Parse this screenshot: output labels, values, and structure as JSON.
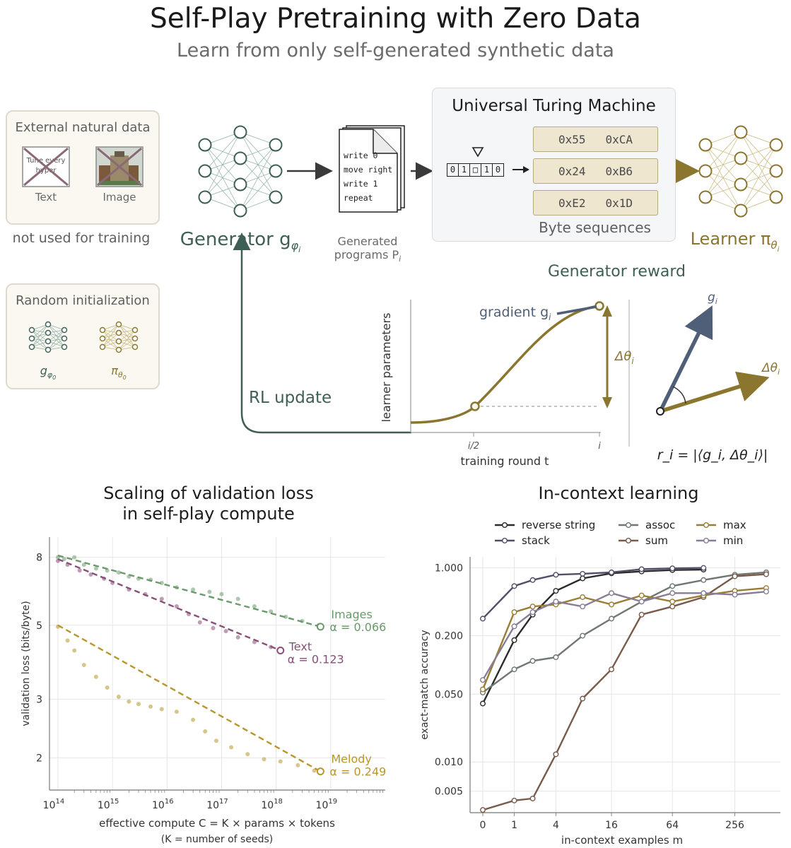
{
  "header": {
    "title": "Self-Play Pretraining with Zero Data",
    "subtitle": "Learn from only self-generated synthetic data"
  },
  "external_panel": {
    "title": "External natural data",
    "text_label": "Text",
    "image_label": "Image",
    "doc_line1": "Tune every",
    "doc_line2": "hyper",
    "caption": "not used for training"
  },
  "random_panel": {
    "title": "Random initialization",
    "g_label": "g",
    "g_sub": "φ",
    "g_subsub": "0",
    "pi_label": "π",
    "pi_sub": "θ",
    "pi_subsub": "0"
  },
  "generator": {
    "label": "Generator g",
    "sub": "φ",
    "subsub": "i"
  },
  "programs": {
    "lines": [
      "write 0",
      "move right",
      "write 1",
      "repeat"
    ],
    "label_line1": "Generated",
    "label_line2": "programs P",
    "label_sub": "i"
  },
  "utm": {
    "title": "Universal Turing Machine",
    "tape": [
      "0",
      "1",
      "□",
      "1",
      "0"
    ],
    "bytes": [
      [
        "0x55",
        "0xCA"
      ],
      [
        "0x24",
        "0xB6"
      ],
      [
        "0xE2",
        "0x1D"
      ]
    ],
    "caption": "Byte sequences"
  },
  "learner": {
    "label": "Learner π",
    "sub": "θ",
    "subsub": "i"
  },
  "reward": {
    "title": "Generator reward",
    "rl_update": "RL update",
    "gradient": "gradient g",
    "gradient_sub": "i",
    "y_axis": "learner parameters",
    "x_axis": "training round  t",
    "tick_half": "i/2",
    "tick_i": "i",
    "delta": "Δθ",
    "delta_sub": "i",
    "g_vec": "g",
    "g_vec_sub": "i",
    "d_vec": "Δθ",
    "d_vec_sub": "i",
    "formula": "r_i = |⟨g_i, Δθ_i⟩|"
  },
  "colors": {
    "generator": "#3d5f55",
    "learner": "#8b7630",
    "arrow": "#3a3a3a",
    "gradient": "#4f5f78",
    "images": "#6a9a6a",
    "text": "#8a4f78",
    "melody": "#b8962e"
  },
  "scaling_chart": {
    "title_line1": "Scaling of validation loss",
    "title_line2": "in self-play compute",
    "ylabel": "validation loss (bits/byte)",
    "xlabel": "effective compute  C = K ×  params × tokens",
    "xlabel2": "(K = number of seeds)"
  },
  "icl_chart": {
    "title": "In-context learning",
    "ylabel": "exact-match accuracy",
    "xlabel": "in-context examples  m"
  },
  "chart_data": [
    {
      "type": "scatter",
      "title": "Scaling of validation loss in self-play compute",
      "xlabel": "effective compute C = K × params × tokens (K = number of seeds)",
      "ylabel": "validation loss (bits/byte)",
      "x_scale": "log",
      "y_scale": "log",
      "xlim": [
        70000000000000.0,
        1e+20
      ],
      "ylim": [
        1.6,
        9.2
      ],
      "x_ticks": [
        100000000000000.0,
        1000000000000000.0,
        1e+16,
        1e+17,
        1e+18,
        1e+19
      ],
      "x_tick_labels": [
        "10^14",
        "10^15",
        "10^16",
        "10^17",
        "10^18",
        "10^19"
      ],
      "y_ticks": [
        2,
        3,
        5,
        8
      ],
      "y_tick_labels": [
        "2",
        "3",
        "5",
        "8"
      ],
      "grid": true,
      "series": [
        {
          "name": "Images",
          "alpha_label": "α = 0.066",
          "color": "#6a9a6a",
          "fit_start": [
            100000000000000.0,
            8.1
          ],
          "fit_end": [
            6.5e+18,
            4.95
          ],
          "end_point": [
            6.5e+18,
            4.95
          ],
          "points": [
            [
              100000000000000.0,
              8.0
            ],
            [
              130000000000000.0,
              7.9
            ],
            [
              200000000000000.0,
              8.0
            ],
            [
              300000000000000.0,
              7.6
            ],
            [
              500000000000000.0,
              7.4
            ],
            [
              800000000000000.0,
              7.3
            ],
            [
              1300000000000000.0,
              7.2
            ],
            [
              2000000000000000.0,
              7.0
            ],
            [
              3000000000000000.0,
              6.9
            ],
            [
              5000000000000000.0,
              6.85
            ],
            [
              8000000000000000.0,
              6.7
            ],
            [
              1.5e+16,
              6.5
            ],
            [
              3e+16,
              6.4
            ],
            [
              6e+16,
              6.3
            ],
            [
              1e+17,
              6.2
            ],
            [
              2e+17,
              6.0
            ],
            [
              4e+17,
              5.7
            ],
            [
              8e+17,
              5.5
            ],
            [
              1.5e+18,
              5.3
            ],
            [
              3e+18,
              5.15
            ],
            [
              6e+18,
              5.0
            ]
          ]
        },
        {
          "name": "Text",
          "alpha_label": "α = 0.123",
          "color": "#8a4f78",
          "fit_start": [
            100000000000000.0,
            7.9
          ],
          "fit_end": [
            1.2e+18,
            4.2
          ],
          "end_point": [
            1.2e+18,
            4.2
          ],
          "points": [
            [
              100000000000000.0,
              7.8
            ],
            [
              150000000000000.0,
              7.6
            ],
            [
              250000000000000.0,
              7.3
            ],
            [
              400000000000000.0,
              7.1
            ],
            [
              700000000000000.0,
              6.9
            ],
            [
              1000000000000000.0,
              6.7
            ],
            [
              2000000000000000.0,
              6.4
            ],
            [
              4000000000000000.0,
              6.2
            ],
            [
              8000000000000000.0,
              6.0
            ],
            [
              1.5e+16,
              5.7
            ],
            [
              2.5e+16,
              5.4
            ],
            [
              4e+16,
              5.1
            ],
            [
              7e+16,
              4.9
            ],
            [
              1.2e+17,
              4.8
            ],
            [
              2e+17,
              4.6
            ],
            [
              4e+17,
              4.45
            ],
            [
              8e+17,
              4.3
            ],
            [
              1.2e+18,
              4.25
            ]
          ]
        },
        {
          "name": "Melody",
          "alpha_label": "α = 0.249",
          "color": "#b8962e",
          "fit_start": [
            100000000000000.0,
            5.0
          ],
          "fit_end": [
            6.5e+18,
            1.82
          ],
          "end_point": [
            6.5e+18,
            1.82
          ],
          "points": [
            [
              100000000000000.0,
              4.95
            ],
            [
              150000000000000.0,
              4.5
            ],
            [
              200000000000000.0,
              4.2
            ],
            [
              300000000000000.0,
              3.8
            ],
            [
              500000000000000.0,
              3.5
            ],
            [
              800000000000000.0,
              3.25
            ],
            [
              1300000000000000.0,
              3.05
            ],
            [
              2000000000000000.0,
              2.95
            ],
            [
              3000000000000000.0,
              2.9
            ],
            [
              5000000000000000.0,
              2.85
            ],
            [
              8000000000000000.0,
              2.8
            ],
            [
              1.5e+16,
              2.75
            ],
            [
              3e+16,
              2.6
            ],
            [
              5e+16,
              2.4
            ],
            [
              8e+16,
              2.25
            ],
            [
              1.5e+17,
              2.15
            ],
            [
              3e+17,
              2.05
            ],
            [
              6e+17,
              1.98
            ],
            [
              1.2e+18,
              1.95
            ],
            [
              2.5e+18,
              1.9
            ],
            [
              5e+18,
              1.83
            ]
          ]
        }
      ]
    },
    {
      "type": "line",
      "title": "In-context learning",
      "xlabel": "in-context examples m",
      "ylabel": "exact-match accuracy",
      "x_scale": "symlog",
      "y_scale": "log",
      "x": [
        0,
        1,
        2,
        4,
        8,
        16,
        32,
        64,
        128,
        256,
        512
      ],
      "xlim": [
        0,
        700
      ],
      "ylim": [
        0.003,
        1.3
      ],
      "x_ticks": [
        0,
        1,
        4,
        16,
        64,
        256
      ],
      "y_ticks": [
        0.005,
        0.01,
        0.05,
        0.2,
        1.0
      ],
      "y_tick_labels": [
        "0.005",
        "0.010",
        "0.050",
        "0.200",
        "1.000"
      ],
      "grid": true,
      "legend": "top",
      "series": [
        {
          "name": "reverse string",
          "color": "#2b2b2b",
          "points": [
            [
              0,
              0.04
            ],
            [
              1,
              0.18
            ],
            [
              2,
              0.33
            ],
            [
              4,
              0.58
            ],
            [
              8,
              0.78
            ],
            [
              16,
              0.88
            ],
            [
              32,
              0.92
            ],
            [
              64,
              0.95
            ],
            [
              128,
              0.96
            ]
          ]
        },
        {
          "name": "stack",
          "color": "#4f5068",
          "points": [
            [
              0,
              0.3
            ],
            [
              1,
              0.65
            ],
            [
              2,
              0.75
            ],
            [
              4,
              0.85
            ],
            [
              8,
              0.87
            ],
            [
              16,
              0.9
            ],
            [
              32,
              0.97
            ],
            [
              64,
              0.99
            ],
            [
              128,
              1.0
            ]
          ]
        },
        {
          "name": "assoc",
          "color": "#6f7771",
          "points": [
            [
              0,
              0.052
            ],
            [
              1,
              0.09
            ],
            [
              2,
              0.11
            ],
            [
              4,
              0.12
            ],
            [
              8,
              0.2
            ],
            [
              16,
              0.3
            ],
            [
              32,
              0.45
            ],
            [
              64,
              0.65
            ],
            [
              128,
              0.75
            ],
            [
              256,
              0.85
            ],
            [
              512,
              0.9
            ]
          ]
        },
        {
          "name": "sum",
          "color": "#7a5a4a",
          "points": [
            [
              0,
              0.0032
            ],
            [
              1,
              0.004
            ],
            [
              2,
              0.0042
            ],
            [
              4,
              0.012
            ],
            [
              8,
              0.045
            ],
            [
              16,
              0.09
            ],
            [
              32,
              0.33
            ],
            [
              64,
              0.4
            ],
            [
              128,
              0.5
            ],
            [
              256,
              0.82
            ],
            [
              512,
              0.86
            ]
          ]
        },
        {
          "name": "max",
          "color": "#9a7d32",
          "points": [
            [
              0,
              0.056
            ],
            [
              1,
              0.35
            ],
            [
              2,
              0.4
            ],
            [
              4,
              0.42
            ],
            [
              8,
              0.5
            ],
            [
              16,
              0.42
            ],
            [
              32,
              0.52
            ],
            [
              64,
              0.45
            ],
            [
              128,
              0.52
            ],
            [
              256,
              0.58
            ],
            [
              512,
              0.62
            ]
          ]
        },
        {
          "name": "min",
          "color": "#887d94",
          "points": [
            [
              0,
              0.07
            ],
            [
              1,
              0.25
            ],
            [
              2,
              0.35
            ],
            [
              4,
              0.45
            ],
            [
              8,
              0.4
            ],
            [
              16,
              0.55
            ],
            [
              32,
              0.45
            ],
            [
              64,
              0.55
            ],
            [
              128,
              0.55
            ],
            [
              256,
              0.53
            ],
            [
              512,
              0.57
            ]
          ]
        }
      ]
    }
  ]
}
